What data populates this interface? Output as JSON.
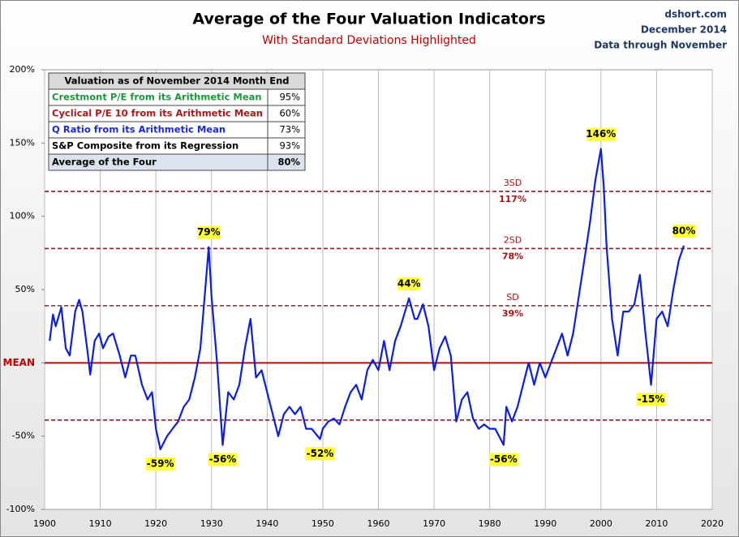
{
  "chart_data": {
    "type": "line",
    "title": "Average of the Four Valuation Indicators",
    "subtitle": "With Standard Deviations Highlighted",
    "source": "dshort.com",
    "date": "December 2014",
    "note": "Data through November",
    "xlim": [
      1900,
      2020
    ],
    "xticks": [
      1900,
      1910,
      1920,
      1930,
      1940,
      1950,
      1960,
      1970,
      1980,
      1990,
      2000,
      2010,
      2020
    ],
    "ylim": [
      -100,
      200
    ],
    "yticks": [
      {
        "value": -100,
        "label": "-100%"
      },
      {
        "value": -50,
        "label": "-50%"
      },
      {
        "value": 0,
        "label": "MEAN"
      },
      {
        "value": 50,
        "label": "50%"
      },
      {
        "value": 100,
        "label": "100%"
      },
      {
        "value": 150,
        "label": "150%"
      },
      {
        "value": 200,
        "label": "200%"
      }
    ],
    "grid": "x",
    "x": [
      1900.9,
      1901.5,
      1902,
      1903,
      1903.8,
      1904.5,
      1905.5,
      1906.2,
      1906.8,
      1907.8,
      1908.2,
      1909,
      1909.8,
      1910.5,
      1911.5,
      1912.3,
      1913.5,
      1914.5,
      1915.5,
      1916.3,
      1917.5,
      1918.5,
      1919.3,
      1920,
      1920.8,
      1922,
      1923,
      1924,
      1925,
      1926,
      1927,
      1928,
      1929.5,
      1930,
      1931,
      1932,
      1933,
      1934,
      1935,
      1936,
      1937,
      1938,
      1939,
      1940,
      1941,
      1942,
      1943,
      1944,
      1945,
      1946,
      1947,
      1948,
      1949.5,
      1950,
      1951,
      1952,
      1953,
      1954,
      1955,
      1956,
      1957,
      1958,
      1959,
      1960,
      1961,
      1962,
      1963,
      1964,
      1965.5,
      1966.5,
      1967,
      1968,
      1969,
      1970,
      1971,
      1972,
      1973,
      1974,
      1975,
      1976,
      1977,
      1978,
      1979,
      1980,
      1981,
      1982.5,
      1983,
      1984,
      1985,
      1986,
      1987,
      1988,
      1989,
      1990,
      1991,
      1992,
      1993,
      1994,
      1995,
      1996,
      1997,
      1998,
      1999,
      2000,
      2000.5,
      2001,
      2002,
      2003,
      2004,
      2005,
      2006,
      2007,
      2008,
      2009,
      2010,
      2011,
      2012,
      2013,
      2014,
      2014.9
    ],
    "series": [
      {
        "color": "#0a1ee6",
        "values": [
          15,
          33,
          25,
          38,
          10,
          5,
          35,
          43,
          35,
          5,
          -8,
          15,
          20,
          10,
          18,
          20,
          5,
          -10,
          5,
          5,
          -15,
          -25,
          -20,
          -45,
          -59,
          -50,
          -45,
          -40,
          -30,
          -25,
          -10,
          10,
          79,
          45,
          0,
          -56,
          -20,
          -25,
          -15,
          10,
          30,
          -10,
          -5,
          -20,
          -35,
          -50,
          -35,
          -30,
          -35,
          -30,
          -45,
          -45,
          -52,
          -45,
          -40,
          -38,
          -42,
          -30,
          -20,
          -15,
          -25,
          -5,
          2,
          -5,
          15,
          -5,
          15,
          25,
          44,
          30,
          30,
          40,
          25,
          -5,
          10,
          18,
          5,
          -40,
          -25,
          -20,
          -38,
          -45,
          -42,
          -45,
          -45,
          -56,
          -30,
          -40,
          -30,
          -15,
          0,
          -15,
          0,
          -10,
          0,
          10,
          20,
          5,
          20,
          45,
          70,
          95,
          125,
          146,
          120,
          80,
          30,
          5,
          35,
          35,
          40,
          60,
          20,
          -15,
          30,
          35,
          25,
          50,
          70,
          80
        ]
      }
    ],
    "reference_lines": [
      {
        "value": 0,
        "style": "solid"
      },
      {
        "value": 39,
        "style": "dashed",
        "name": "SD",
        "label": "39%"
      },
      {
        "value": 78,
        "style": "dashed",
        "name": "2SD",
        "label": "78%"
      },
      {
        "value": 117,
        "style": "dashed",
        "name": "3SD",
        "label": "117%"
      },
      {
        "value": -39,
        "style": "dashed"
      }
    ],
    "annotations": [
      {
        "x": 1920.8,
        "value": -59,
        "label": "-59%"
      },
      {
        "x": 1929.5,
        "value": 79,
        "label": "79%"
      },
      {
        "x": 1932,
        "value": -56,
        "label": "-56%"
      },
      {
        "x": 1949.5,
        "value": -52,
        "label": "-52%"
      },
      {
        "x": 1965.5,
        "value": 44,
        "label": "44%"
      },
      {
        "x": 1982.5,
        "value": -56,
        "label": "-56%"
      },
      {
        "x": 2000,
        "value": 146,
        "label": "146%"
      },
      {
        "x": 2009,
        "value": -15,
        "label": "-15%"
      },
      {
        "x": 2014.9,
        "value": 80,
        "label": "80%"
      }
    ],
    "table": {
      "title": "Valuation as of November 2014 Month End",
      "rows": [
        {
          "name": "Crestmont P/E from its Arithmetic Mean",
          "color": "#1a9a3a",
          "value": 95,
          "label": "95%"
        },
        {
          "name": "Cyclical P/E 10 from its Arithmetic Mean",
          "color": "#b01818",
          "value": 60,
          "label": "60%"
        },
        {
          "name": "Q Ratio from its Arithmetic Mean",
          "color": "#1a2ae0",
          "value": 73,
          "label": "73%"
        },
        {
          "name": "S&P Composite from its Regression",
          "color": "#000000",
          "value": 93,
          "label": "93%"
        },
        {
          "name": "Average of the Four",
          "color": "#000000",
          "value": 80,
          "label": "80%"
        }
      ]
    }
  }
}
